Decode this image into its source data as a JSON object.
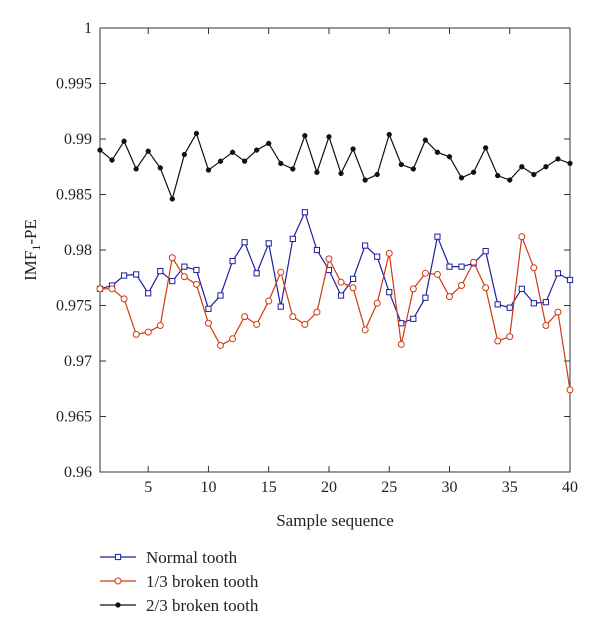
{
  "chart_data": {
    "type": "line",
    "title": "",
    "xlabel": "Sample sequence",
    "ylabel_main": "IMF",
    "ylabel_sub": "1",
    "ylabel_suffix": "-PE",
    "xlim": [
      1,
      40
    ],
    "ylim": [
      0.96,
      1.0
    ],
    "x_ticks": [
      5,
      10,
      15,
      20,
      25,
      30,
      35,
      40
    ],
    "y_ticks": [
      0.96,
      0.965,
      0.97,
      0.975,
      0.98,
      0.985,
      0.99,
      0.995,
      1.0
    ],
    "y_tick_labels": [
      "0.96",
      "0.965",
      "0.97",
      "0.975",
      "0.98",
      "0.985",
      "0.99",
      "0.995",
      "1"
    ],
    "grid": false,
    "legend_placement": "bottom-left, below plot",
    "x": [
      1,
      2,
      3,
      4,
      5,
      6,
      7,
      8,
      9,
      10,
      11,
      12,
      13,
      14,
      15,
      16,
      17,
      18,
      19,
      20,
      21,
      22,
      23,
      24,
      25,
      26,
      27,
      28,
      29,
      30,
      31,
      32,
      33,
      34,
      35,
      36,
      37,
      38,
      39,
      40
    ],
    "series": [
      {
        "name": "Normal tooth",
        "color": "#1f1fa0",
        "marker": "square",
        "values": [
          0.9765,
          0.9768,
          0.9777,
          0.9778,
          0.9761,
          0.9781,
          0.9772,
          0.9785,
          0.9782,
          0.9747,
          0.9759,
          0.979,
          0.9807,
          0.9779,
          0.9806,
          0.9749,
          0.981,
          0.9834,
          0.98,
          0.9782,
          0.9759,
          0.9774,
          0.9804,
          0.9794,
          0.9762,
          0.9734,
          0.9738,
          0.9757,
          0.9812,
          0.9785,
          0.9785,
          0.9788,
          0.9799,
          0.9751,
          0.9748,
          0.9765,
          0.9752,
          0.9753,
          0.9779,
          0.9773
        ]
      },
      {
        "name": "1/3 broken tooth",
        "color": "#d03a10",
        "marker": "circle",
        "values": [
          0.9765,
          0.9765,
          0.9756,
          0.9724,
          0.9726,
          0.9732,
          0.9793,
          0.9776,
          0.9769,
          0.9734,
          0.9714,
          0.972,
          0.974,
          0.9733,
          0.9754,
          0.978,
          0.974,
          0.9733,
          0.9744,
          0.9792,
          0.9771,
          0.9766,
          0.9728,
          0.9752,
          0.9797,
          0.9715,
          0.9765,
          0.9779,
          0.9778,
          0.9758,
          0.9768,
          0.9789,
          0.9766,
          0.9718,
          0.9722,
          0.9812,
          0.9784,
          0.9732,
          0.9744,
          0.9674
        ]
      },
      {
        "name": "2/3 broken tooth",
        "color": "#111111",
        "marker": "dot",
        "values": [
          0.989,
          0.9881,
          0.9898,
          0.9873,
          0.9889,
          0.9874,
          0.9846,
          0.9886,
          0.9905,
          0.9872,
          0.988,
          0.9888,
          0.988,
          0.989,
          0.9896,
          0.9878,
          0.9873,
          0.9903,
          0.987,
          0.9902,
          0.9869,
          0.9891,
          0.9863,
          0.9868,
          0.9904,
          0.9877,
          0.9873,
          0.9899,
          0.9888,
          0.9884,
          0.9865,
          0.987,
          0.9892,
          0.9867,
          0.9863,
          0.9875,
          0.9868,
          0.9875,
          0.9882,
          0.9878
        ]
      }
    ]
  }
}
